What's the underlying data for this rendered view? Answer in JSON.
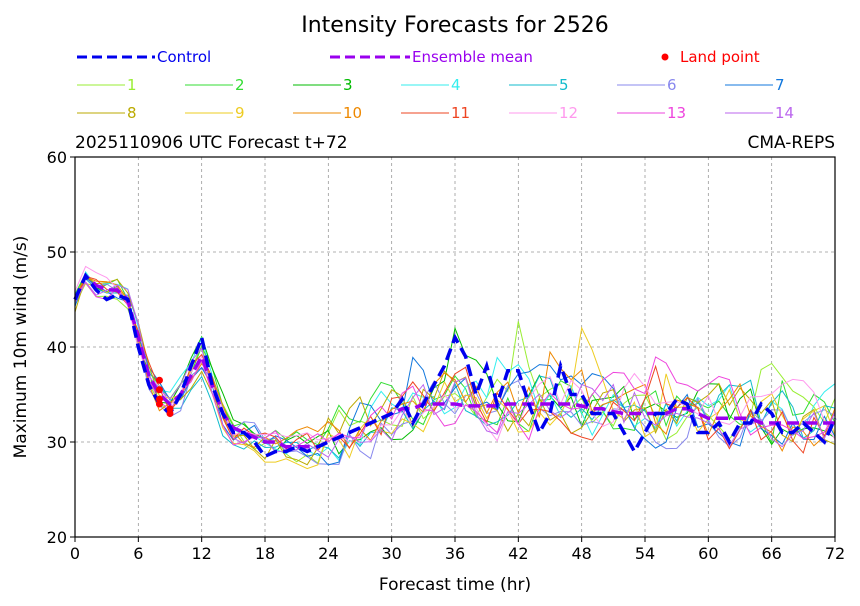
{
  "chart_data": {
    "type": "line",
    "title": "Intensity Forecasts for 2526",
    "subtitle_left": "2025110906 UTC Forecast t+72",
    "subtitle_right": "CMA-REPS",
    "xlabel": "Forecast time (hr)",
    "ylabel": "Maximum 10m wind (m/s)",
    "xlim": [
      0,
      72
    ],
    "ylim": [
      20,
      60
    ],
    "xticks": [
      0,
      6,
      12,
      18,
      24,
      30,
      36,
      42,
      48,
      54,
      60,
      66,
      72
    ],
    "yticks": [
      20,
      30,
      40,
      50,
      60
    ],
    "grid": true,
    "legend": {
      "control": "Control",
      "ensemble_mean": "Ensemble mean",
      "land_point": "Land point"
    },
    "control": {
      "name": "Control",
      "color": "#0000ee",
      "x": [
        0,
        1,
        2,
        3,
        4,
        5,
        6,
        7,
        8,
        9,
        10,
        11,
        12,
        13,
        14,
        15,
        16,
        17,
        18,
        19,
        20,
        21,
        22,
        23,
        24,
        25,
        26,
        27,
        28,
        29,
        30,
        31,
        32,
        33,
        34,
        35,
        36,
        37,
        38,
        39,
        40,
        41,
        42,
        43,
        44,
        45,
        46,
        47,
        48,
        49,
        50,
        51,
        52,
        53,
        54,
        55,
        56,
        57,
        58,
        59,
        60,
        61,
        62,
        63,
        64,
        65,
        66,
        67,
        68,
        69,
        70,
        71,
        72
      ],
      "values": [
        45,
        47.5,
        46,
        45,
        45.5,
        45,
        40,
        36,
        34,
        33,
        35,
        38,
        41,
        36,
        33,
        31,
        31,
        30,
        28.5,
        29,
        29,
        29.5,
        29,
        29.5,
        30,
        30.5,
        31,
        31.5,
        32,
        32.5,
        33,
        34.5,
        32,
        34,
        36,
        38,
        41,
        39,
        35,
        38,
        34,
        37.5,
        37.5,
        34,
        31,
        33,
        38,
        35,
        35,
        33,
        33,
        33,
        31,
        29,
        31,
        33,
        33,
        34.5,
        34,
        31,
        31,
        32,
        30,
        32,
        32,
        34,
        33,
        31,
        31,
        32,
        31,
        30,
        32.5
      ]
    },
    "ensemble_mean": {
      "name": "Ensemble mean",
      "color": "#9900ee",
      "x": [
        0,
        1,
        2,
        3,
        4,
        5,
        6,
        7,
        8,
        9,
        10,
        11,
        12,
        13,
        14,
        15,
        16,
        17,
        18,
        19,
        20,
        21,
        22,
        23,
        24,
        25,
        26,
        27,
        28,
        29,
        30,
        31,
        32,
        33,
        34,
        35,
        36,
        37,
        38,
        39,
        40,
        41,
        42,
        43,
        44,
        45,
        46,
        47,
        48,
        49,
        50,
        51,
        52,
        53,
        54,
        55,
        56,
        57,
        58,
        59,
        60,
        61,
        62,
        63,
        64,
        65,
        66,
        67,
        68,
        69,
        70,
        71,
        72
      ],
      "values": [
        45,
        47.5,
        46.5,
        46,
        46,
        45,
        41,
        37,
        35,
        34,
        35,
        37,
        39,
        36,
        33,
        31.5,
        31,
        30.5,
        30,
        30,
        29.5,
        29.5,
        29.5,
        29.5,
        30,
        30.5,
        31,
        31.5,
        32,
        32.5,
        33,
        33.5,
        33.5,
        34,
        34,
        34,
        34,
        33.8,
        33.8,
        33.8,
        33.8,
        34,
        34,
        34,
        34,
        34,
        34,
        34,
        33.8,
        33.5,
        33.5,
        33.2,
        33,
        33,
        33,
        33,
        33,
        33.5,
        33.5,
        33,
        32.5,
        32.5,
        32.5,
        32.5,
        32.5,
        32,
        32,
        32,
        32,
        32,
        32,
        32,
        32
      ]
    },
    "land_points": {
      "name": "Land point",
      "color": "#ff0000",
      "points": [
        [
          8,
          34.5
        ],
        [
          8,
          35.5
        ],
        [
          8,
          36.5
        ],
        [
          8,
          34
        ],
        [
          9,
          33.5
        ],
        [
          9,
          33
        ]
      ]
    },
    "members": [
      {
        "name": "1",
        "color": "#99ee33"
      },
      {
        "name": "2",
        "color": "#33dd33"
      },
      {
        "name": "3",
        "color": "#00bb00"
      },
      {
        "name": "4",
        "color": "#33eeee"
      },
      {
        "name": "5",
        "color": "#11bbcc"
      },
      {
        "name": "6",
        "color": "#8888ee"
      },
      {
        "name": "7",
        "color": "#1177dd"
      },
      {
        "name": "8",
        "color": "#bbaa00"
      },
      {
        "name": "9",
        "color": "#eecc22"
      },
      {
        "name": "10",
        "color": "#ee8800"
      },
      {
        "name": "11",
        "color": "#ee4422"
      },
      {
        "name": "12",
        "color": "#ff99ee"
      },
      {
        "name": "13",
        "color": "#ee44dd"
      },
      {
        "name": "14",
        "color": "#bb66ee"
      }
    ]
  }
}
